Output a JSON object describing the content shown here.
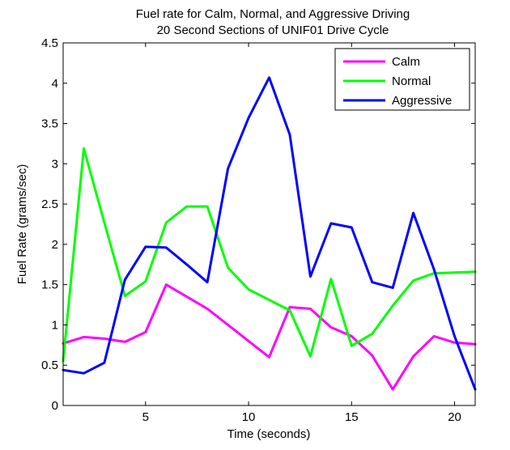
{
  "chart_data": {
    "type": "line",
    "title": "Fuel rate for Calm, Normal, and Aggressive Driving",
    "subtitle": "20 Second Sections of UNIF01 Drive Cycle",
    "xlabel": "Time (seconds)",
    "ylabel": "Fuel Rate (grams/sec)",
    "xlim": [
      1,
      21
    ],
    "ylim": [
      0,
      4.5
    ],
    "x_ticks": [
      "5",
      "10",
      "15",
      "20"
    ],
    "y_ticks": [
      "0",
      "0.5",
      "1",
      "1.5",
      "2",
      "2.5",
      "3",
      "3.5",
      "4",
      "4.5"
    ],
    "grid": false,
    "legend_position": "top-right",
    "x": [
      1,
      2,
      3,
      4,
      5,
      6,
      7,
      8,
      9,
      10,
      11,
      12,
      13,
      14,
      15,
      16,
      17,
      18,
      19,
      20,
      21
    ],
    "series": [
      {
        "name": "Calm",
        "color": "#ff00ff",
        "values": [
          0.77,
          0.85,
          0.83,
          0.79,
          0.91,
          1.5,
          1.35,
          1.2,
          1.0,
          0.8,
          0.6,
          1.22,
          1.2,
          0.97,
          0.86,
          0.62,
          0.2,
          0.61,
          0.86,
          0.78,
          0.76
        ]
      },
      {
        "name": "Normal",
        "color": "#00ff00",
        "values": [
          0.55,
          3.19,
          2.27,
          1.36,
          1.54,
          2.27,
          2.47,
          2.47,
          1.71,
          1.44,
          1.31,
          1.18,
          0.61,
          1.57,
          0.74,
          0.89,
          1.24,
          1.55,
          1.64,
          1.65,
          1.66
        ]
      },
      {
        "name": "Aggressive",
        "color": "#0000ff",
        "values": [
          0.44,
          0.4,
          0.53,
          1.56,
          1.97,
          1.96,
          1.75,
          1.53,
          2.94,
          3.57,
          4.07,
          3.36,
          1.6,
          2.26,
          2.21,
          1.53,
          1.46,
          2.39,
          1.69,
          0.86,
          0.2
        ]
      }
    ]
  }
}
